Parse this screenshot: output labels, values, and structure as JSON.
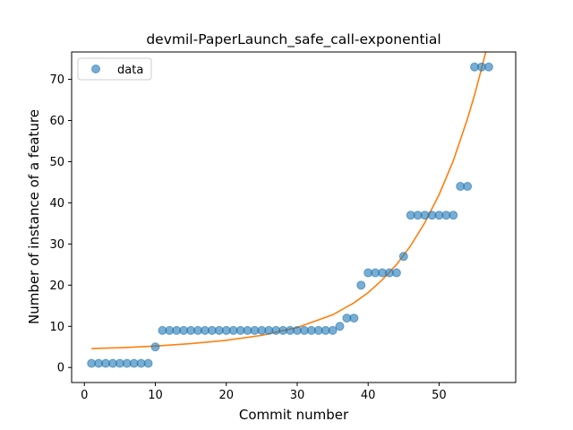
{
  "chart_data": {
    "type": "scatter",
    "title": "devmil-PaperLaunch_safe_call-exponential",
    "xlabel": "Commit number",
    "ylabel": "Number of instance of a feature",
    "xlim": [
      -1.8,
      60.8
    ],
    "ylim": [
      -3.65,
      76.65
    ],
    "xticks": [
      0,
      10,
      20,
      30,
      40,
      50
    ],
    "yticks": [
      0,
      10,
      20,
      30,
      40,
      50,
      60,
      70
    ],
    "grid": false,
    "legend_position": "top-left",
    "series": [
      {
        "name": "data",
        "kind": "scatter",
        "color": "#1f77b4",
        "x": [
          1,
          2,
          3,
          4,
          5,
          6,
          7,
          8,
          9,
          10,
          11,
          12,
          13,
          14,
          15,
          16,
          17,
          18,
          19,
          20,
          21,
          22,
          23,
          24,
          25,
          26,
          27,
          28,
          29,
          30,
          31,
          32,
          33,
          34,
          35,
          36,
          37,
          38,
          39,
          40,
          41,
          42,
          43,
          44,
          45,
          46,
          47,
          48,
          49,
          50,
          51,
          52,
          53,
          54,
          55,
          56,
          57
        ],
        "y": [
          1,
          1,
          1,
          1,
          1,
          1,
          1,
          1,
          1,
          5,
          9,
          9,
          9,
          9,
          9,
          9,
          9,
          9,
          9,
          9,
          9,
          9,
          9,
          9,
          9,
          9,
          9,
          9,
          9,
          9,
          9,
          9,
          9,
          9,
          9,
          10,
          12,
          12,
          20,
          23,
          23,
          23,
          23,
          23,
          27,
          37,
          37,
          37,
          37,
          37,
          37,
          37,
          44,
          44,
          73,
          73,
          73
        ]
      },
      {
        "kind": "line",
        "color": "#ff7f0e",
        "x": [
          1,
          5,
          10,
          15,
          20,
          25,
          30,
          35,
          38,
          40,
          42,
          44,
          46,
          48,
          50,
          52,
          54,
          55,
          56,
          57
        ],
        "y": [
          4.6,
          4.8,
          5.2,
          5.8,
          6.6,
          7.8,
          9.7,
          12.8,
          15.7,
          18.2,
          21.3,
          25.0,
          29.6,
          35.2,
          42.0,
          50.2,
          60.4,
          66.2,
          72.7,
          79.5
        ]
      }
    ]
  }
}
